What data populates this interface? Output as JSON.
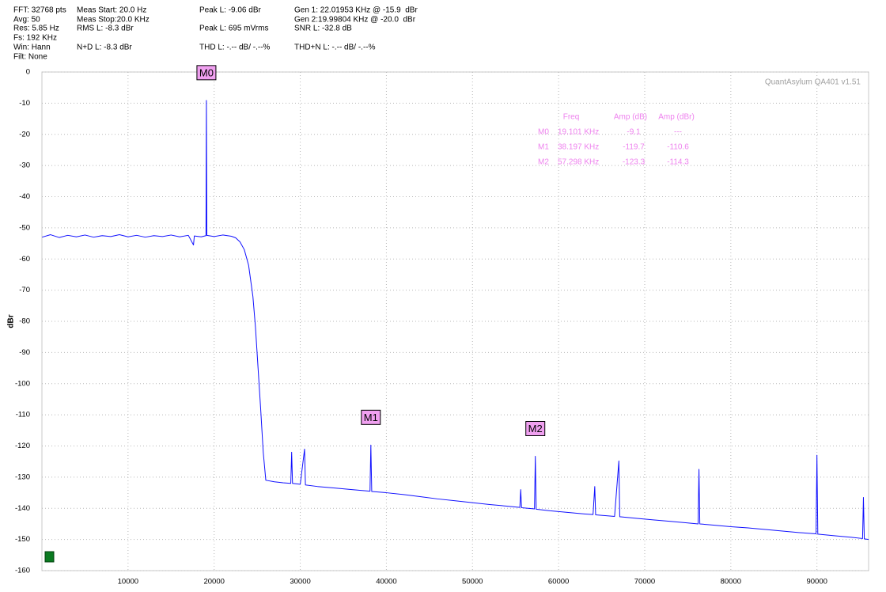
{
  "header": {
    "fft": "FFT: 32768 pts",
    "avg": "Avg: 50",
    "res": "Res: 5.85 Hz",
    "fs": "Fs: 192 KHz",
    "win": "Win: Hann",
    "filt": "Filt: None",
    "meas_start": "Meas Start: 20.0 Hz",
    "meas_stop": "Meas Stop:20.0 KHz",
    "rms": "RMS L: -8.3 dBr",
    "nd": "N+D L: -8.3 dBr",
    "peak_dbr": "Peak L: -9.06 dBr",
    "peak_vrms": "Peak L: 695 mVrms",
    "thd": "THD L: -.-- dB/ -.--%",
    "gen1": "Gen 1: 22.01953 KHz @ -15.9  dBr",
    "gen2": "Gen 2:19.99804 KHz @ -20.0  dBr",
    "snr": "SNR L: -32.8 dB",
    "thdn": "THD+N L: -.-- dB/ -.--%"
  },
  "chart_data": {
    "type": "line",
    "ylabel": "dBr",
    "watermark": "QuantAsylum QA401 v1.51",
    "xlim": [
      0,
      96000
    ],
    "xticks": [
      10000,
      20000,
      30000,
      40000,
      50000,
      60000,
      70000,
      80000,
      90000
    ],
    "ylim": [
      -160,
      0
    ],
    "yticks": [
      0,
      -10,
      -20,
      -30,
      -40,
      -50,
      -60,
      -70,
      -80,
      -90,
      -100,
      -110,
      -120,
      -130,
      -140,
      -150,
      -160
    ],
    "grid": true,
    "x": [
      20,
      1000,
      2000,
      3000,
      4000,
      5000,
      6000,
      7000,
      8000,
      9000,
      10000,
      11000,
      12000,
      13000,
      14000,
      15000,
      16000,
      17000,
      17600,
      17700,
      18500,
      19050,
      19101,
      19150,
      20000,
      21000,
      22000,
      22500,
      23000,
      23500,
      24000,
      24500,
      24800,
      25100,
      25400,
      25700,
      26000,
      27000,
      28000,
      28900,
      29000,
      29100,
      30000,
      30500,
      30600,
      32000,
      34000,
      36000,
      38100,
      38197,
      38300,
      40000,
      42000,
      44000,
      46000,
      48000,
      50000,
      52000,
      54000,
      55500,
      55600,
      55700,
      57200,
      57298,
      57400,
      59000,
      61000,
      63000,
      64000,
      64200,
      64300,
      66500,
      67000,
      67100,
      69000,
      71000,
      73000,
      75000,
      76200,
      76300,
      76400,
      78000,
      80000,
      82000,
      84000,
      86000,
      88000,
      89900,
      90000,
      90100,
      92000,
      94000,
      95300,
      95400,
      95500,
      96000
    ],
    "series": [
      {
        "color": "#1010ff",
        "values": [
          -53,
          -52.2,
          -53.1,
          -52.4,
          -52.9,
          -52.3,
          -53.0,
          -52.5,
          -52.8,
          -52.2,
          -52.9,
          -52.4,
          -53.0,
          -52.5,
          -52.8,
          -52.3,
          -52.9,
          -52.4,
          -55.5,
          -52.6,
          -52.9,
          -52.5,
          -9.1,
          -52.4,
          -52.8,
          -52.3,
          -52.7,
          -53.2,
          -54.5,
          -57,
          -62,
          -72,
          -82,
          -95,
          -108,
          -122,
          -131,
          -131.5,
          -131.8,
          -132,
          -122,
          -132,
          -132.3,
          -121,
          -132.5,
          -133,
          -133.5,
          -134,
          -134.5,
          -119.7,
          -134.6,
          -135,
          -135.6,
          -136.3,
          -137,
          -137.6,
          -138.2,
          -138.8,
          -139.3,
          -139.7,
          -134,
          -139.8,
          -140.2,
          -123.3,
          -140.3,
          -140.8,
          -141.3,
          -141.8,
          -142,
          -133,
          -142.1,
          -142.6,
          -124.8,
          -142.7,
          -143.2,
          -143.7,
          -144.2,
          -144.7,
          -145,
          -127.5,
          -145,
          -145.4,
          -145.9,
          -146.3,
          -146.8,
          -147.3,
          -147.8,
          -148.2,
          -123,
          -148.3,
          -148.8,
          -149.3,
          -149.7,
          -136.5,
          -149.8,
          -150
        ]
      }
    ],
    "markers": [
      {
        "label": "M0",
        "x": 19101,
        "y": -9.1
      },
      {
        "label": "M1",
        "x": 38197,
        "y": -119.7
      },
      {
        "label": "M2",
        "x": 57298,
        "y": -123.3
      }
    ],
    "marker_color": "#f0a0f0",
    "marker_table": {
      "columns": [
        "Freq",
        "Amp (dB)",
        "Amp (dBr)"
      ],
      "rows": [
        [
          "M0",
          "19.101 KHz",
          "-9.1",
          "---"
        ],
        [
          "M1",
          "38.197 KHz",
          "-119.7",
          "-110.6"
        ],
        [
          "M2",
          "57.298 KHz",
          "-123.3",
          "-114.3"
        ]
      ]
    }
  }
}
